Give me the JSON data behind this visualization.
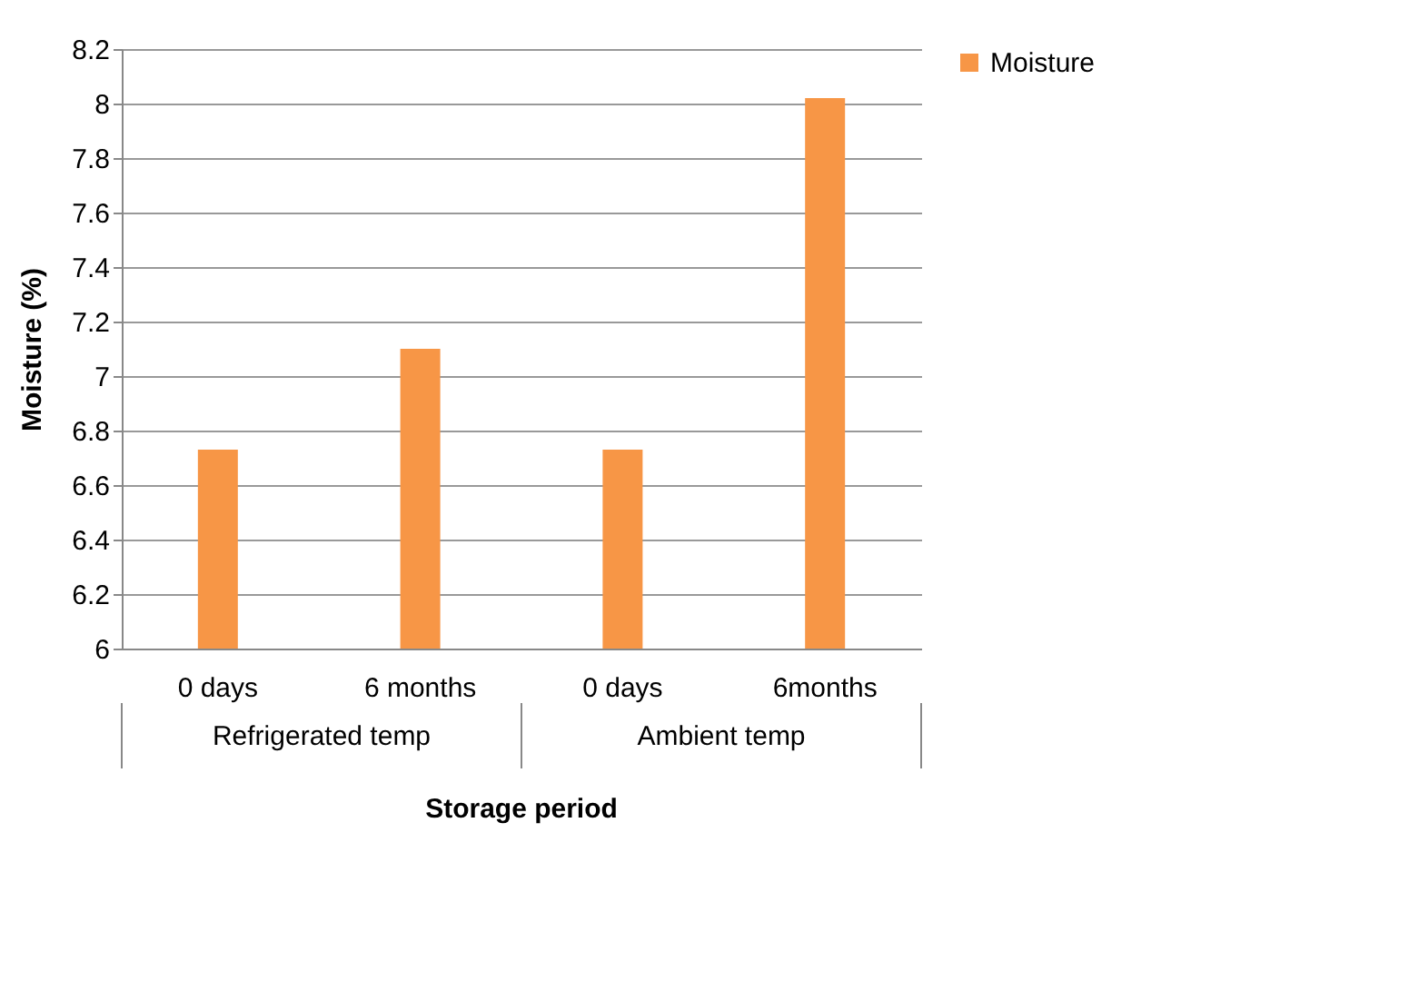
{
  "chart_data": {
    "type": "bar",
    "xlabel": "Storage period",
    "ylabel": "Moisture  (%)",
    "categories": [
      "0 days",
      "6 months",
      "0 days",
      "6months"
    ],
    "series": [
      {
        "name": "Moisture",
        "color": "#f79646",
        "values": [
          6.73,
          7.1,
          6.73,
          8.02
        ]
      }
    ],
    "annotations": [
      "Refrigerated temp",
      "Ambient temp"
    ],
    "ylim": [
      6,
      8.2
    ],
    "yticks": [
      6,
      6.2,
      6.4,
      6.6,
      6.8,
      7,
      7.2,
      7.4,
      7.6,
      7.8,
      8,
      8.2
    ],
    "grid": "y",
    "legend": "right"
  }
}
